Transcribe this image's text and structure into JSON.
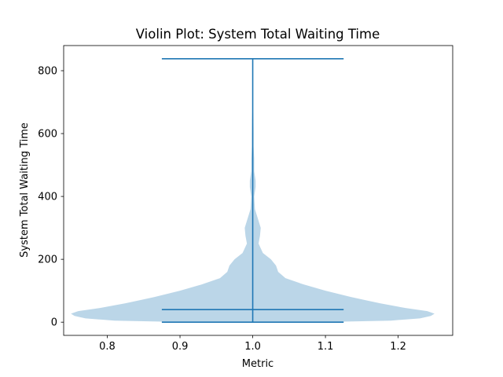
{
  "chart_data": {
    "type": "violin",
    "title": "Violin Plot: System Total Waiting Time",
    "xlabel": "Metric",
    "ylabel": "System Total Waiting Time",
    "xlim": [
      0.74,
      1.275
    ],
    "ylim": [
      -42,
      880
    ],
    "x_ticks": [
      0.8,
      0.9,
      1.0,
      1.1,
      1.2
    ],
    "x_tick_labels": [
      "0.8",
      "0.9",
      "1.0",
      "1.1",
      "1.2"
    ],
    "y_ticks": [
      0,
      200,
      400,
      600,
      800
    ],
    "y_tick_labels": [
      "0",
      "200",
      "400",
      "600",
      "800"
    ],
    "violin": {
      "position": 1.0,
      "min": 0,
      "max": 838,
      "median": 40,
      "density_profile": [
        {
          "y": 0,
          "half_width": 0.085
        },
        {
          "y": 5,
          "half_width": 0.19
        },
        {
          "y": 12,
          "half_width": 0.23
        },
        {
          "y": 20,
          "half_width": 0.245
        },
        {
          "y": 27,
          "half_width": 0.25
        },
        {
          "y": 35,
          "half_width": 0.24
        },
        {
          "y": 45,
          "half_width": 0.21
        },
        {
          "y": 60,
          "half_width": 0.175
        },
        {
          "y": 80,
          "half_width": 0.135
        },
        {
          "y": 100,
          "half_width": 0.1
        },
        {
          "y": 120,
          "half_width": 0.07
        },
        {
          "y": 140,
          "half_width": 0.045
        },
        {
          "y": 160,
          "half_width": 0.035
        },
        {
          "y": 180,
          "half_width": 0.032
        },
        {
          "y": 200,
          "half_width": 0.025
        },
        {
          "y": 220,
          "half_width": 0.014
        },
        {
          "y": 250,
          "half_width": 0.008
        },
        {
          "y": 275,
          "half_width": 0.01
        },
        {
          "y": 300,
          "half_width": 0.011
        },
        {
          "y": 330,
          "half_width": 0.007
        },
        {
          "y": 360,
          "half_width": 0.003
        },
        {
          "y": 400,
          "half_width": 0.002
        },
        {
          "y": 430,
          "half_width": 0.004
        },
        {
          "y": 450,
          "half_width": 0.004
        },
        {
          "y": 480,
          "half_width": 0.002
        },
        {
          "y": 520,
          "half_width": 0.002
        },
        {
          "y": 560,
          "half_width": 0.0012
        },
        {
          "y": 600,
          "half_width": 0.0012
        },
        {
          "y": 640,
          "half_width": 0.001
        },
        {
          "y": 680,
          "half_width": 0.0004
        },
        {
          "y": 720,
          "half_width": 0.0
        }
      ],
      "cap_half_width": 0.125
    },
    "colors": {
      "body": "#1f77b4",
      "body_alpha": 0.3,
      "lines": "#1f77b4"
    }
  }
}
